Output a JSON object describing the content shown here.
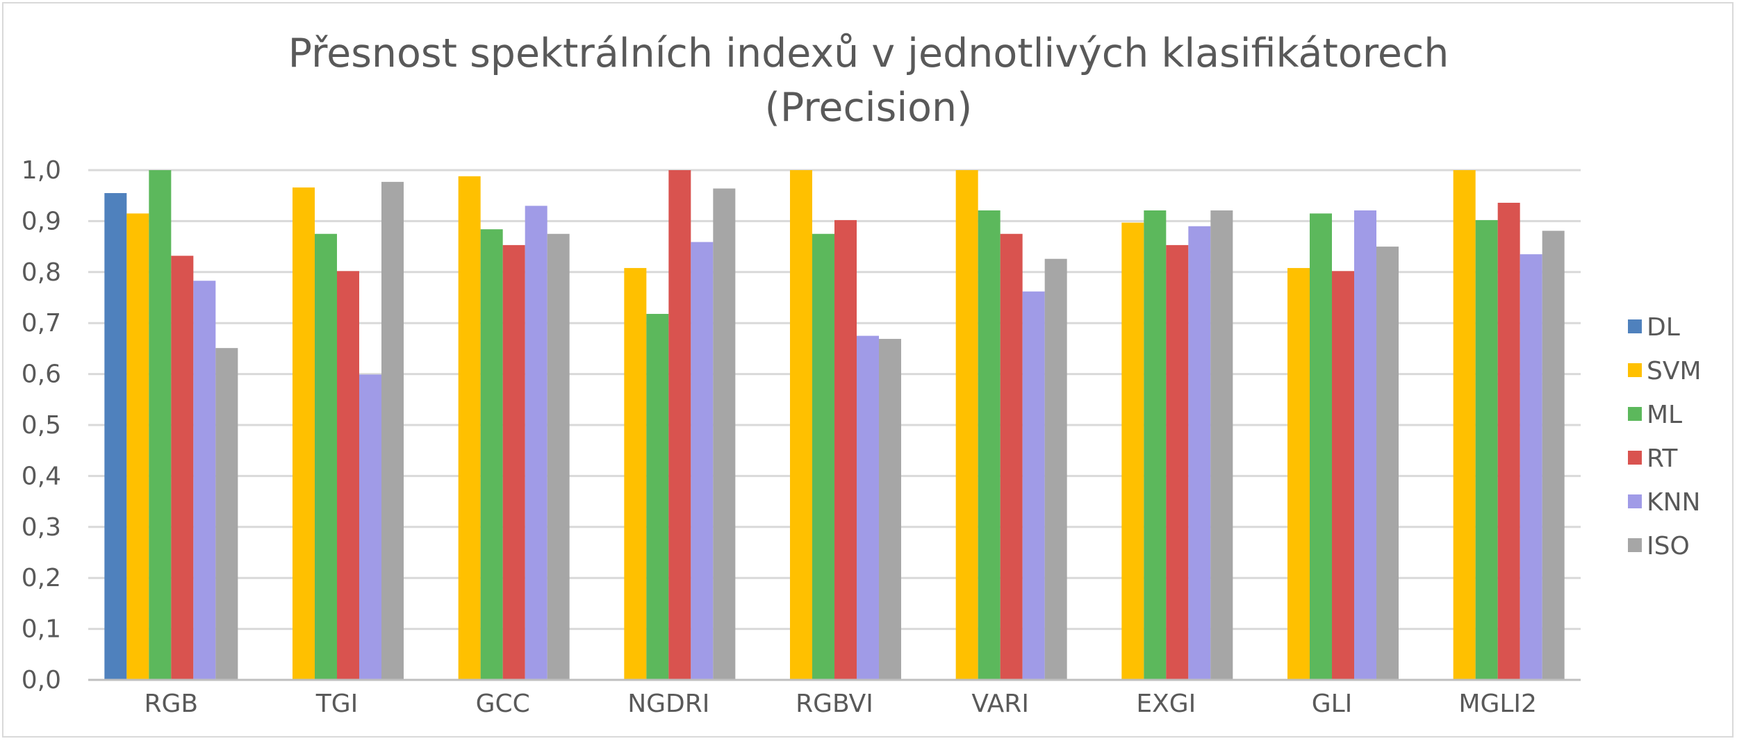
{
  "chart_data": {
    "type": "bar",
    "title": "Přesnost spektrálních indexů v jednotlivých klasifikátorech",
    "subtitle": "(Precision)",
    "xlabel": "",
    "ylabel": "",
    "categories": [
      "RGB",
      "TGI",
      "GCC",
      "NGDRI",
      "RGBVI",
      "VARI",
      "EXGI",
      "GLI",
      "MGLI2"
    ],
    "ylim": [
      0,
      1
    ],
    "y_ticks": [
      "0,0",
      "0,1",
      "0,2",
      "0,3",
      "0,4",
      "0,5",
      "0,6",
      "0,7",
      "0,8",
      "0,9",
      "1,0"
    ],
    "grid": true,
    "legend_position": "right",
    "series": [
      {
        "name": "DL",
        "color": "#4f81bd",
        "values": [
          0.955,
          null,
          null,
          null,
          null,
          null,
          null,
          null,
          null
        ]
      },
      {
        "name": "SVM",
        "color": "#ffc000",
        "values": [
          0.915,
          0.966,
          0.988,
          0.808,
          1.0,
          1.0,
          0.897,
          0.808,
          1.0
        ]
      },
      {
        "name": "ML",
        "color": "#5cb85c",
        "values": [
          1.0,
          0.875,
          0.884,
          0.718,
          0.875,
          0.921,
          0.921,
          0.915,
          0.902
        ]
      },
      {
        "name": "RT",
        "color": "#d9534f",
        "values": [
          0.832,
          0.802,
          0.853,
          1.0,
          0.902,
          0.875,
          0.853,
          0.802,
          0.936
        ]
      },
      {
        "name": "KNN",
        "color": "#a09be7",
        "values": [
          0.783,
          0.599,
          0.93,
          0.859,
          0.675,
          0.762,
          0.89,
          0.921,
          0.835
        ]
      },
      {
        "name": "ISO",
        "color": "#a6a6a6",
        "values": [
          0.651,
          0.977,
          0.875,
          0.964,
          0.669,
          0.826,
          0.921,
          0.85,
          0.881
        ]
      }
    ]
  }
}
